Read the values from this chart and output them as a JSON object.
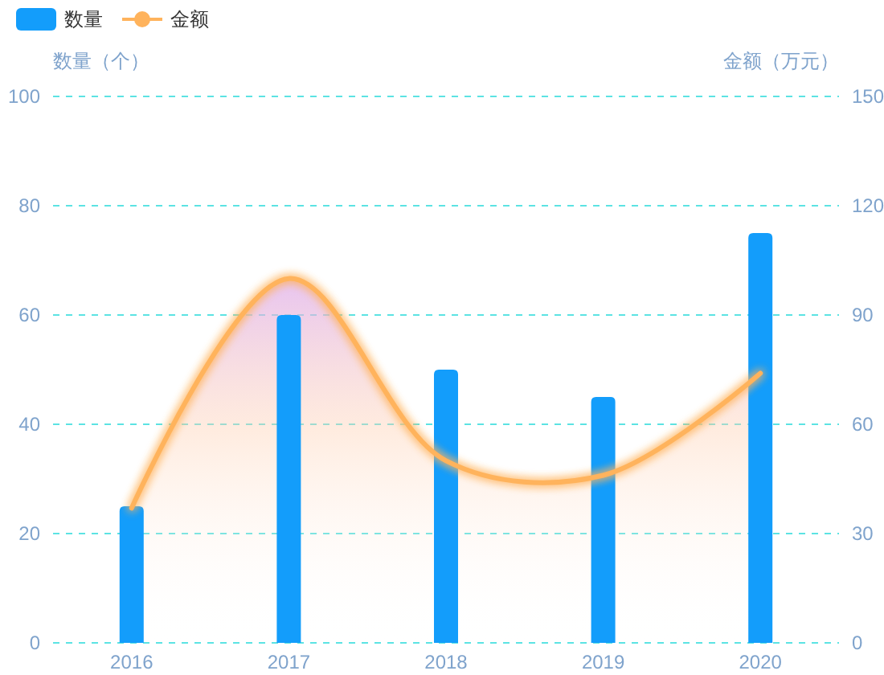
{
  "chart_data": {
    "type": "bar",
    "categories": [
      "2016",
      "2017",
      "2018",
      "2019",
      "2020"
    ],
    "ylabel": "数量（个）",
    "y2label": "金额（万元）",
    "ylim": [
      0,
      100
    ],
    "yticks": [
      0,
      20,
      40,
      60,
      80,
      100
    ],
    "y2lim": [
      0,
      150
    ],
    "y2ticks": [
      0,
      30,
      60,
      90,
      120,
      150
    ],
    "grid": "y",
    "legend": "top left",
    "series": [
      {
        "name": "数量",
        "color": "#139dfb",
        "values": [
          25,
          60,
          50,
          45,
          75
        ]
      },
      {
        "name": "金额",
        "type": "area",
        "axis": "y2",
        "color": "#ffb35c",
        "values": [
          37,
          100,
          50,
          46,
          74
        ]
      }
    ]
  }
}
